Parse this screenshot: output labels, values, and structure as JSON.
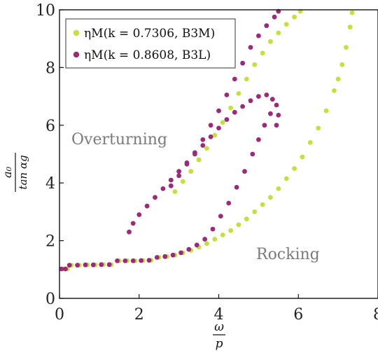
{
  "chart_data": {
    "type": "scatter",
    "xlim": [
      0,
      8
    ],
    "ylim": [
      0,
      10
    ],
    "xticks": [
      "0",
      "2",
      "4",
      "6",
      "8"
    ],
    "yticks": [
      "0",
      "2",
      "4",
      "6",
      "8",
      "10"
    ],
    "xlabel": {
      "num": "ω",
      "den": "p"
    },
    "ylabel": {
      "num": "a₀",
      "den": "tan αg"
    },
    "grid": false,
    "legend_position": "top-left",
    "annotations": [
      {
        "text": "Overturning",
        "x": 0.3,
        "y": 5.5
      },
      {
        "text": "Rocking",
        "x": 4.9,
        "y": 1.45
      }
    ],
    "series": [
      {
        "name": "ηM(k = 0.7306, B3M)",
        "color": "#c5e03a",
        "points": [
          [
            0.1,
            1.02
          ],
          [
            0.2,
            1.02
          ],
          [
            0.3,
            1.15
          ],
          [
            0.5,
            1.15
          ],
          [
            0.7,
            1.16
          ],
          [
            0.9,
            1.16
          ],
          [
            1.1,
            1.17
          ],
          [
            1.3,
            1.17
          ],
          [
            1.5,
            1.3
          ],
          [
            1.7,
            1.3
          ],
          [
            1.9,
            1.3
          ],
          [
            2.1,
            1.31
          ],
          [
            2.3,
            1.32
          ],
          [
            2.5,
            1.42
          ],
          [
            2.7,
            1.45
          ],
          [
            2.9,
            1.5
          ],
          [
            3.1,
            1.58
          ],
          [
            3.3,
            1.66
          ],
          [
            3.5,
            1.78
          ],
          [
            3.7,
            1.9
          ],
          [
            3.9,
            2.05
          ],
          [
            4.1,
            2.2
          ],
          [
            4.3,
            2.35
          ],
          [
            4.5,
            2.55
          ],
          [
            4.7,
            2.75
          ],
          [
            4.9,
            3.0
          ],
          [
            5.1,
            3.25
          ],
          [
            5.3,
            3.5
          ],
          [
            5.5,
            3.8
          ],
          [
            5.7,
            4.15
          ],
          [
            5.9,
            4.5
          ],
          [
            6.1,
            4.9
          ],
          [
            6.3,
            5.4
          ],
          [
            6.5,
            5.9
          ],
          [
            6.7,
            6.5
          ],
          [
            6.9,
            7.2
          ],
          [
            7.0,
            7.6
          ],
          [
            7.1,
            8.1
          ],
          [
            7.2,
            8.7
          ],
          [
            7.3,
            9.4
          ],
          [
            7.35,
            9.9
          ],
          [
            2.9,
            3.7
          ],
          [
            3.1,
            4.05
          ],
          [
            3.3,
            4.4
          ],
          [
            3.5,
            4.8
          ],
          [
            3.7,
            5.2
          ],
          [
            3.9,
            5.65
          ],
          [
            4.1,
            6.1
          ],
          [
            4.3,
            6.6
          ],
          [
            4.5,
            7.1
          ],
          [
            4.7,
            7.6
          ],
          [
            4.9,
            8.1
          ],
          [
            5.1,
            8.5
          ],
          [
            5.3,
            8.9
          ],
          [
            5.5,
            9.2
          ],
          [
            5.7,
            9.5
          ],
          [
            5.9,
            9.75
          ],
          [
            6.05,
            9.95
          ]
        ]
      },
      {
        "name": "ηM(k = 0.8608, B3L)",
        "color": "#9b2a7a",
        "points": [
          [
            0.05,
            1.02
          ],
          [
            0.15,
            1.02
          ],
          [
            0.25,
            1.15
          ],
          [
            0.45,
            1.15
          ],
          [
            0.65,
            1.16
          ],
          [
            0.85,
            1.16
          ],
          [
            1.05,
            1.17
          ],
          [
            1.25,
            1.17
          ],
          [
            1.45,
            1.3
          ],
          [
            1.65,
            1.3
          ],
          [
            1.85,
            1.3
          ],
          [
            2.05,
            1.31
          ],
          [
            2.25,
            1.32
          ],
          [
            2.45,
            1.42
          ],
          [
            2.65,
            1.45
          ],
          [
            2.85,
            1.5
          ],
          [
            3.05,
            1.58
          ],
          [
            3.25,
            1.7
          ],
          [
            3.45,
            1.85
          ],
          [
            3.65,
            2.05
          ],
          [
            3.85,
            2.4
          ],
          [
            4.05,
            2.85
          ],
          [
            4.25,
            3.3
          ],
          [
            4.45,
            3.85
          ],
          [
            4.65,
            4.4
          ],
          [
            4.85,
            5.0
          ],
          [
            5.0,
            5.5
          ],
          [
            5.15,
            6.0
          ],
          [
            5.3,
            6.4
          ],
          [
            5.45,
            6.7
          ],
          [
            5.5,
            6.35
          ],
          [
            5.45,
            6.0
          ],
          [
            5.35,
            6.9
          ],
          [
            5.2,
            7.05
          ],
          [
            5.0,
            7.0
          ],
          [
            4.8,
            6.85
          ],
          [
            4.6,
            6.65
          ],
          [
            4.4,
            6.45
          ],
          [
            4.2,
            6.2
          ],
          [
            4.0,
            5.9
          ],
          [
            3.8,
            5.6
          ],
          [
            3.6,
            5.3
          ],
          [
            3.4,
            5.0
          ],
          [
            3.2,
            4.7
          ],
          [
            3.0,
            4.4
          ],
          [
            2.8,
            4.1
          ],
          [
            2.6,
            3.8
          ],
          [
            2.4,
            3.5
          ],
          [
            2.2,
            3.2
          ],
          [
            2.0,
            2.9
          ],
          [
            1.85,
            2.6
          ],
          [
            1.75,
            2.3
          ],
          [
            2.8,
            3.9
          ],
          [
            3.0,
            4.25
          ],
          [
            3.2,
            4.65
          ],
          [
            3.4,
            5.05
          ],
          [
            3.6,
            5.5
          ],
          [
            3.8,
            6.0
          ],
          [
            4.0,
            6.5
          ],
          [
            4.2,
            7.05
          ],
          [
            4.4,
            7.6
          ],
          [
            4.6,
            8.15
          ],
          [
            4.8,
            8.7
          ],
          [
            5.0,
            9.1
          ],
          [
            5.2,
            9.45
          ],
          [
            5.4,
            9.75
          ],
          [
            5.5,
            9.95
          ]
        ]
      }
    ]
  }
}
